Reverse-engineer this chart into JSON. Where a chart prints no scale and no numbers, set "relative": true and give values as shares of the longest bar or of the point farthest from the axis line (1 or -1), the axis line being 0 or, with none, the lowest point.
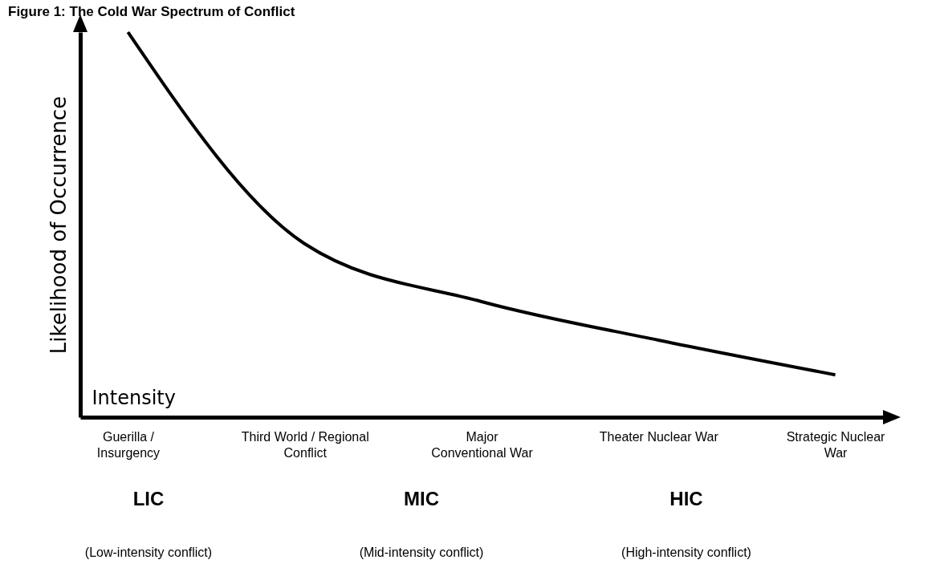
{
  "chart_data": {
    "type": "line",
    "title": "Figure 1: The Cold War Spectrum of Conflict",
    "xlabel": "Intensity",
    "ylabel": "Likelihood of Occurrence",
    "relative": true,
    "categories": [
      "Guerilla /\nInsurgency",
      "Third World / Regional\nConflict",
      "Major\nConventional War",
      "Theater Nuclear War",
      "Strategic Nuclear\nWar"
    ],
    "series": [
      {
        "color": "#000000",
        "values": [
          1,
          0.45,
          0.3,
          0.2,
          0.11
        ]
      }
    ],
    "annotations": [
      "LIC",
      "(Low-intensity conflict)",
      "MIC",
      "(Mid-intensity conflict)",
      "HIC",
      "(High-intensity conflict)"
    ],
    "grid": false,
    "marker": "none",
    "line_style": "solid"
  }
}
